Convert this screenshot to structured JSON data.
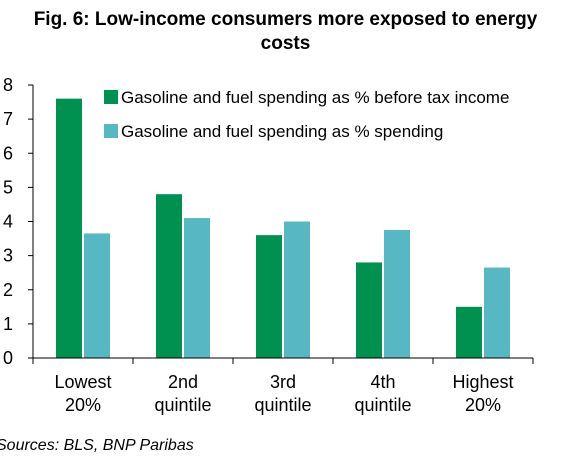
{
  "chart_data": {
    "type": "bar",
    "title_lines": [
      "Fig. 6: Low-income consumers more exposed to energy",
      "costs"
    ],
    "categories": [
      [
        "Lowest",
        "20%"
      ],
      [
        "2nd",
        "quintile"
      ],
      [
        "3rd",
        "quintile"
      ],
      [
        "4th",
        "quintile"
      ],
      [
        "Highest",
        "20%"
      ]
    ],
    "series": [
      {
        "name": "Gasoline and fuel spending as % before tax income",
        "color": "#009150",
        "values": [
          7.6,
          4.8,
          3.6,
          2.8,
          1.5
        ]
      },
      {
        "name": "Gasoline and fuel spending as % spending",
        "color": "#57B7C3",
        "values": [
          3.65,
          4.1,
          4.0,
          3.75,
          2.65
        ]
      }
    ],
    "ylim": [
      0,
      8
    ],
    "yticks": [
      "0",
      "1",
      "2",
      "3",
      "4",
      "5",
      "6",
      "7",
      "8"
    ],
    "grid": false,
    "legend_position": "top-right",
    "source": "Sources: BLS, BNP Paribas"
  }
}
